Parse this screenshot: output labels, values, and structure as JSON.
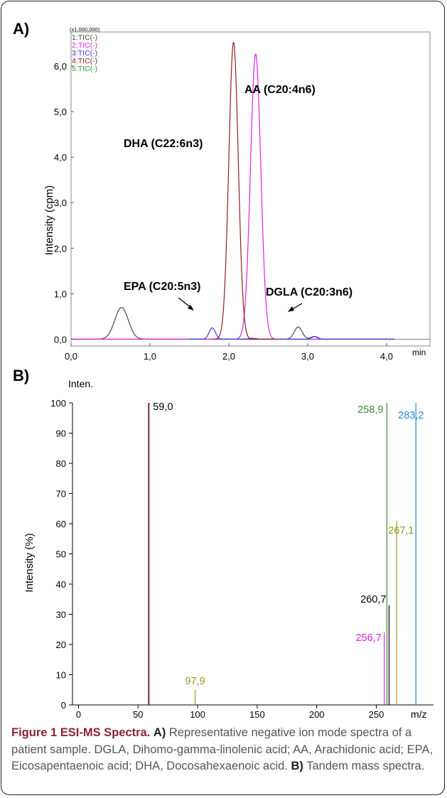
{
  "chart_data": [
    {
      "type": "line",
      "panel_label": "A)",
      "scale_note": "(x1,000,000)",
      "xlabel": "min",
      "ylabel": "Intensity (cpm)",
      "xlim": [
        0.0,
        4.55
      ],
      "ylim": [
        -0.15,
        6.75
      ],
      "x_ticks": [
        "0,0",
        "1,0",
        "2,0",
        "3,0",
        "4,0"
      ],
      "y_ticks": [
        "0,0",
        "1,0",
        "2,0",
        "3,0",
        "4,0",
        "5,0",
        "6,0"
      ],
      "legend": [
        "1:TIC(-)",
        "2:TIC(-)",
        "3:TIC(-)",
        "4:TIC(-)",
        "5:TIC(-)"
      ],
      "series": [
        {
          "name": "1:TIC(-)",
          "color": "#4a4a4a",
          "peaks": [
            {
              "x": 0.64,
              "y": 0.7,
              "w": 0.085
            },
            {
              "x": 2.88,
              "y": 0.27,
              "w": 0.05
            },
            {
              "x": 3.08,
              "y": 0.06,
              "w": 0.04
            },
            {
              "x": 2.3,
              "y": 0.02,
              "w": 0.05
            }
          ]
        },
        {
          "name": "2:TIC(-)",
          "color": "#e020e0",
          "peaks": [
            {
              "x": 2.34,
              "y": 6.27,
              "w": 0.065
            }
          ]
        },
        {
          "name": "3:TIC(-)",
          "color": "#3a3ae8",
          "peaks": [
            {
              "x": 1.79,
              "y": 0.25,
              "w": 0.04
            },
            {
              "x": 3.09,
              "y": 0.06,
              "w": 0.04
            }
          ]
        },
        {
          "name": "4:TIC(-)",
          "color": "#8a2020",
          "peaks": [
            {
              "x": 2.06,
              "y": 6.52,
              "w": 0.06
            }
          ]
        },
        {
          "name": "5:TIC(-)",
          "color": "#2a9a2a",
          "peaks": []
        }
      ],
      "annotations": [
        "AA (C20:4n6)",
        "DHA (C22:6n3)",
        "EPA (C20:5n3)",
        "DGLA (C20:3n6)"
      ]
    },
    {
      "type": "bar",
      "panel_label": "B)",
      "ylabel_top": "Inten.",
      "ylabel": "Intensity (%)",
      "xlabel": "m/z",
      "xlim": [
        -5,
        298
      ],
      "ylim": [
        0,
        100
      ],
      "x_ticks": [
        "0",
        "50",
        "100",
        "150",
        "200",
        "250"
      ],
      "y_ticks": [
        "0",
        "10",
        "20",
        "30",
        "40",
        "50",
        "60",
        "70",
        "80",
        "90",
        "100"
      ],
      "peaks": [
        {
          "label": "59,0",
          "x": 59.0,
          "y": 100,
          "color": "#7a2050",
          "label_color": "#000000"
        },
        {
          "label": "97,9",
          "x": 97.9,
          "y": 5,
          "color": "#9a9a20",
          "label_color": "#9a9a20"
        },
        {
          "label": "256,7",
          "x": 256.7,
          "y": 24,
          "color": "#e020e0",
          "label_color": "#e020e0"
        },
        {
          "label": "258,9",
          "x": 258.9,
          "y": 100,
          "color": "#3a8a3a",
          "label_color": "#3a8a3a"
        },
        {
          "label": "260,7",
          "x": 260.7,
          "y": 33,
          "color": "#000000",
          "label_color": "#000000"
        },
        {
          "label": "267,1",
          "x": 267.1,
          "y": 61,
          "color": "#9a9a20",
          "label_color": "#9a9a20"
        },
        {
          "label": "283,2",
          "x": 283.2,
          "y": 100,
          "color": "#2a8ad0",
          "label_color": "#2a8ad0"
        }
      ]
    }
  ],
  "caption": {
    "title": "Figure 1 ESI-MS Spectra.",
    "a_label": "A)",
    "a_text": "Representative negative ion mode spectra of a patient sample. DGLA, Dihomo-gamma-linolenic acid; AA, Arachidonic acid; EPA, Eicosapentaenoic acid; DHA, Docosahexaenoic acid.",
    "b_label": "B)",
    "b_text": "Tandem mass spectra."
  }
}
